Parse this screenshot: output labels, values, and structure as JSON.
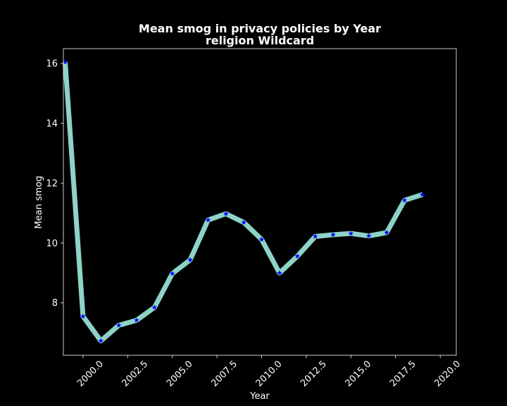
{
  "chart_data": {
    "type": "line",
    "title_line1": "Mean smog in privacy policies by Year",
    "title_line2": "religion Wildcard",
    "xlabel": "Year",
    "ylabel": "Mean smog",
    "x_ticks": [
      "2000.0",
      "2002.5",
      "2005.0",
      "2007.5",
      "2010.0",
      "2012.5",
      "2015.0",
      "2017.5",
      "2020.0"
    ],
    "y_ticks": [
      "8",
      "10",
      "12",
      "14",
      "16"
    ],
    "xlim": [
      1998.9,
      2020.9
    ],
    "ylim": [
      6.25,
      16.5
    ],
    "grid": false,
    "line_color": "#8dd3c7",
    "marker_color": "#0000ff",
    "marker": "star",
    "background": "#000000",
    "series": [
      {
        "x": [
          1999,
          2000,
          2001,
          2002,
          2003,
          2004,
          2005,
          2006,
          2007,
          2008,
          2009,
          2010,
          2011,
          2012,
          2013,
          2014,
          2015,
          2016,
          2017,
          2018,
          2019
        ],
        "y": [
          16.05,
          7.55,
          6.73,
          7.25,
          7.42,
          7.85,
          8.98,
          9.44,
          10.77,
          10.98,
          10.69,
          10.12,
          9.0,
          9.56,
          10.22,
          10.28,
          10.32,
          10.24,
          10.35,
          11.43,
          11.62
        ]
      }
    ]
  }
}
